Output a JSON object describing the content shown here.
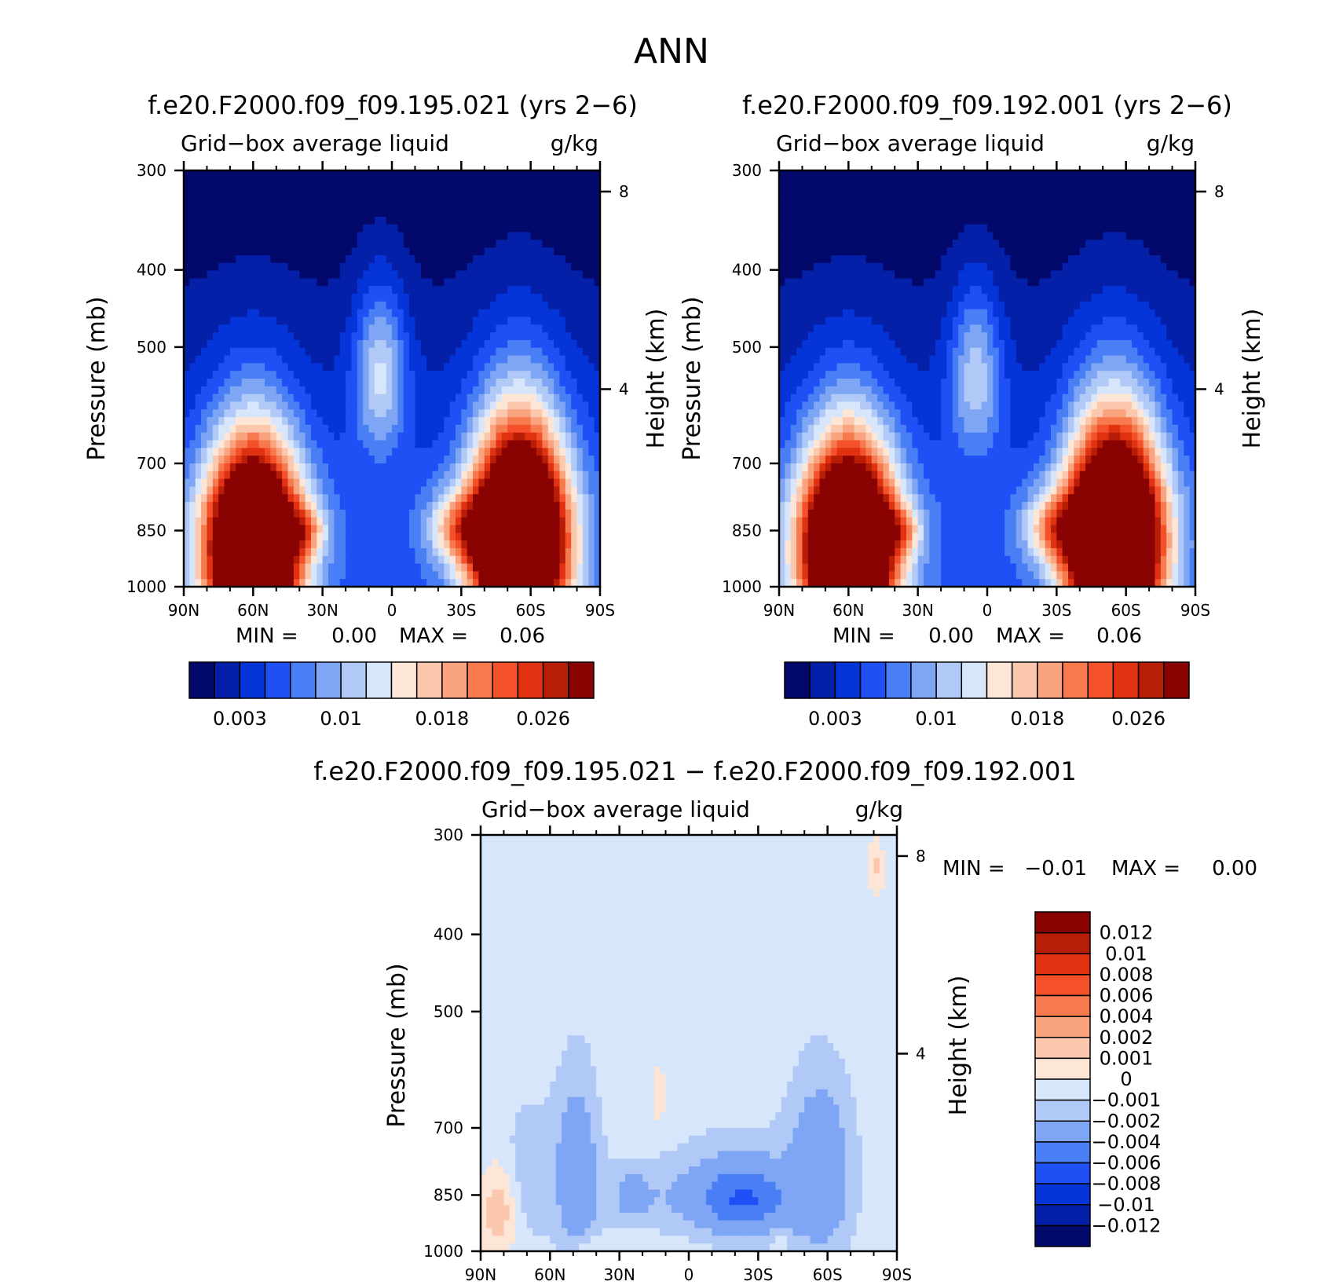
{
  "figure": {
    "suptitle": "ANN"
  },
  "chart_data": [
    {
      "type": "heatmap",
      "title": "f.e20.F2000.f09_f09.195.021 (yrs 2-6)",
      "variable": "Grid-box average liquid",
      "units": "g/kg",
      "ylabel": "Pressure (mb)",
      "ylabel_right": "Height (km)",
      "xticks": [
        "90N",
        "60N",
        "30N",
        "0",
        "30S",
        "60S",
        "90S"
      ],
      "yticks": [
        300,
        400,
        500,
        700,
        850,
        1000
      ],
      "yticks_right": [
        8,
        4
      ],
      "ylim": [
        1000,
        300
      ],
      "y_scale": "log",
      "min_label": "MIN =",
      "min_value": "0.00",
      "max_label": "MAX =",
      "max_value": "0.06",
      "colorbar_labels": [
        "0.003",
        "0.01",
        "0.018",
        "0.026"
      ],
      "colorbar_colors": [
        "#03086b",
        "#0420a8",
        "#0535d9",
        "#1e50f6",
        "#4a7ef5",
        "#7ea6f4",
        "#b1c9f6",
        "#d7e6fb",
        "#fde6d6",
        "#fbc8ad",
        "#f9a37f",
        "#f77a4f",
        "#f4512a",
        "#e03110",
        "#b81d07",
        "#8a0303"
      ],
      "features": [
        {
          "lat": 60,
          "p": 900,
          "sigma": [
            14,
            170
          ],
          "amp": 0.052
        },
        {
          "lat": -55,
          "p": 880,
          "sigma": [
            14,
            180
          ],
          "amp": 0.054
        },
        {
          "lat": 5,
          "p": 540,
          "sigma": [
            8,
            90
          ],
          "amp": 0.011
        },
        {
          "lat": -30,
          "p": 845,
          "sigma": [
            10,
            60
          ],
          "amp": 0.012
        },
        {
          "lat": 38,
          "p": 848,
          "sigma": [
            7,
            40
          ],
          "amp": 0.008
        }
      ]
    },
    {
      "type": "heatmap",
      "title": "f.e20.F2000.f09_f09.192.001 (yrs 2-6)",
      "variable": "Grid-box average liquid",
      "units": "g/kg",
      "ylabel": "Pressure (mb)",
      "ylabel_right": "Height (km)",
      "xticks": [
        "90N",
        "60N",
        "30N",
        "0",
        "30S",
        "60S",
        "90S"
      ],
      "yticks": [
        300,
        400,
        500,
        700,
        850,
        1000
      ],
      "yticks_right": [
        8,
        4
      ],
      "ylim": [
        1000,
        300
      ],
      "y_scale": "log",
      "min_label": "MIN =",
      "min_value": "0.00",
      "max_label": "MAX =",
      "max_value": "0.06",
      "colorbar_labels": [
        "0.003",
        "0.01",
        "0.018",
        "0.026"
      ],
      "colorbar_colors": [
        "#03086b",
        "#0420a8",
        "#0535d9",
        "#1e50f6",
        "#4a7ef5",
        "#7ea6f4",
        "#b1c9f6",
        "#d7e6fb",
        "#fde6d6",
        "#fbc8ad",
        "#f9a37f",
        "#f77a4f",
        "#f4512a",
        "#e03110",
        "#b81d07",
        "#8a0303"
      ],
      "features": [
        {
          "lat": 60,
          "p": 900,
          "sigma": [
            14,
            170
          ],
          "amp": 0.053
        },
        {
          "lat": -55,
          "p": 880,
          "sigma": [
            14,
            180
          ],
          "amp": 0.055
        },
        {
          "lat": 5,
          "p": 540,
          "sigma": [
            8,
            90
          ],
          "amp": 0.01
        },
        {
          "lat": -30,
          "p": 845,
          "sigma": [
            10,
            60
          ],
          "amp": 0.012
        },
        {
          "lat": 38,
          "p": 848,
          "sigma": [
            7,
            40
          ],
          "amp": 0.008
        }
      ]
    },
    {
      "type": "heatmap",
      "title": "f.e20.F2000.f09_f09.195.021 - f.e20.F2000.f09_f09.192.001",
      "variable": "Grid-box average liquid",
      "units": "g/kg",
      "ylabel": "Pressure (mb)",
      "ylabel_right": "Height (km)",
      "xticks": [
        "90N",
        "60N",
        "30N",
        "0",
        "30S",
        "60S",
        "90S"
      ],
      "yticks": [
        300,
        400,
        500,
        700,
        850,
        1000
      ],
      "yticks_right": [
        8,
        4
      ],
      "ylim": [
        1000,
        300
      ],
      "y_scale": "log",
      "min_label": "MIN =",
      "min_value": "-0.01",
      "max_label": "MAX =",
      "max_value": "0.00",
      "colorbar_labels": [
        "0.012",
        "0.01",
        "0.008",
        "0.006",
        "0.004",
        "0.002",
        "0.001",
        "0",
        "-0.001",
        "-0.002",
        "-0.004",
        "-0.006",
        "-0.008",
        "-0.01",
        "-0.012"
      ],
      "colorbar_colors": [
        "#8a0303",
        "#b81d07",
        "#e03110",
        "#f4512a",
        "#f77a4f",
        "#f9a37f",
        "#fbc8ad",
        "#fde6d6",
        "#d7e6fb",
        "#b1c9f6",
        "#7ea6f4",
        "#4a7ef5",
        "#1e50f6",
        "#0535d9",
        "#0420a8",
        "#03086b"
      ],
      "features": [
        {
          "lat": 82,
          "p": 890,
          "sigma": [
            5,
            80
          ],
          "amp": 0.0025
        },
        {
          "lat": 70,
          "p": 800,
          "sigma": [
            10,
            140
          ],
          "amp": -0.0012
        },
        {
          "lat": 48,
          "p": 800,
          "sigma": [
            7,
            160
          ],
          "amp": -0.0028
        },
        {
          "lat": 25,
          "p": 850,
          "sigma": [
            6,
            50
          ],
          "amp": -0.0015
        },
        {
          "lat": -25,
          "p": 860,
          "sigma": [
            12,
            60
          ],
          "amp": -0.0045
        },
        {
          "lat": -57,
          "p": 800,
          "sigma": [
            10,
            150
          ],
          "amp": -0.0032
        },
        {
          "lat": -15,
          "p": 820,
          "sigma": [
            22,
            120
          ],
          "amp": -0.001
        },
        {
          "lat": 0,
          "p": 860,
          "sigma": [
            25,
            60
          ],
          "amp": -0.0012
        },
        {
          "lat": 13,
          "p": 640,
          "sigma": [
            2,
            30
          ],
          "amp": 0.0015
        },
        {
          "lat": 45,
          "p": 985,
          "sigma": [
            4,
            18
          ],
          "amp": 0.0012
        },
        {
          "lat": -40,
          "p": 970,
          "sigma": [
            2,
            20
          ],
          "amp": 0.0012
        },
        {
          "lat": -81,
          "p": 330,
          "sigma": [
            2,
            15
          ],
          "amp": 0.0015
        }
      ]
    }
  ]
}
